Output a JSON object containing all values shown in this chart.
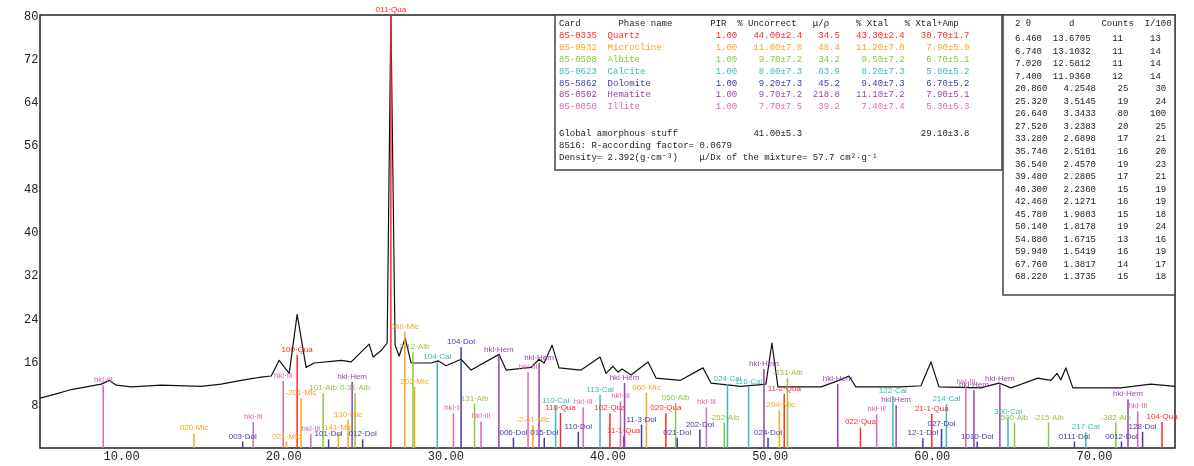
{
  "chart_data": {
    "type": "line",
    "xlim": [
      5,
      75
    ],
    "ylim": [
      0,
      80
    ],
    "xticks": [
      {
        "value": 10,
        "label": "10.00"
      },
      {
        "value": 20,
        "label": "20.00"
      },
      {
        "value": 30,
        "label": "30.00"
      },
      {
        "value": 40,
        "label": "40.00"
      },
      {
        "value": 50,
        "label": "50.00"
      },
      {
        "value": 60,
        "label": "60.00"
      },
      {
        "value": 70,
        "label": "70.00"
      }
    ],
    "yticks": [
      8,
      16,
      24,
      32,
      40,
      48,
      56,
      64,
      72,
      80
    ],
    "series": [
      {
        "color": "#111111",
        "x": [
          5.0,
          6.0,
          6.93,
          7.85,
          8.78,
          9.27,
          9.7,
          10.63,
          12.47,
          14.94,
          16.17,
          17.41,
          18.64,
          19.26,
          19.75,
          20.37,
          20.86,
          21.41,
          21.91,
          22.96,
          23.57,
          24.19,
          25.3,
          25.55,
          26.04,
          26.41,
          26.64,
          26.9,
          27.15,
          27.52,
          27.89,
          29.12,
          29.55,
          30.05,
          30.97,
          31.59,
          33.31,
          33.75,
          35.29,
          35.78,
          36.09,
          36.58,
          37.01,
          38.37,
          39.54,
          39.91,
          40.34,
          40.65,
          40.9,
          41.45,
          42.5,
          43.0,
          44.5,
          45.89,
          46.38,
          48.23,
          49.77,
          50.14,
          50.51,
          53.17,
          54.28,
          54.89,
          55.32,
          58.1,
          59.33,
          59.95,
          60.44,
          63.03,
          64.14,
          64.88,
          66.54,
          67.35,
          67.72,
          67.96,
          68.27,
          68.7,
          71.66,
          73.51,
          75.0
        ],
        "values": [
          9.2,
          10.0,
          10.8,
          11.3,
          11.8,
          12.5,
          11.6,
          11.3,
          11.6,
          11.4,
          11.8,
          12.5,
          13.1,
          13.3,
          16.2,
          13.8,
          24.7,
          14.9,
          15.7,
          16.0,
          16.2,
          15.9,
          19.2,
          16.8,
          18.0,
          19.4,
          80,
          19.0,
          17.0,
          20.3,
          15.7,
          15.7,
          16.1,
          15.2,
          16.4,
          14.4,
          17.3,
          14.4,
          14.9,
          16.4,
          15.7,
          19.0,
          14.8,
          14.4,
          16.8,
          13.8,
          15.1,
          14.0,
          14.6,
          13.5,
          15.9,
          12.9,
          12.5,
          14.8,
          12.0,
          11.4,
          11.8,
          19.4,
          11.3,
          11.3,
          12.5,
          13.3,
          11.3,
          11.3,
          11.5,
          15.9,
          11.3,
          11.1,
          12.0,
          11.1,
          12.9,
          12.5,
          13.8,
          12.6,
          14.8,
          11.1,
          11.1,
          11.8,
          11.4
        ]
      },
      {
        "type": "bar",
        "color": "#ff2a2a",
        "x": [
          20.86,
          26.64,
          37.1,
          40.15,
          41.0,
          43.6,
          50.9,
          55.6,
          60.0,
          74.2
        ],
        "values": [
          17.2,
          80,
          6.5,
          6.4,
          2.2,
          6.4,
          10.0,
          3.8,
          6.3,
          4.8
        ]
      },
      {
        "type": "bar",
        "color": "#ffa31a",
        "x": [
          14.5,
          20.2,
          21.1,
          23.4,
          24.0,
          27.5,
          28.1,
          35.4,
          42.4,
          50.6
        ],
        "values": [
          2.7,
          1.2,
          9.2,
          2.7,
          5.2,
          21.5,
          11.3,
          4.2,
          10.2,
          7.0
        ]
      },
      {
        "type": "bar",
        "color": "#8dc63f",
        "x": [
          22.46,
          24.43,
          28.0,
          31.8,
          44.2,
          47.2,
          51.1,
          65.1,
          67.2,
          71.35
        ],
        "values": [
          10.1,
          10.1,
          17.7,
          8.2,
          8.3,
          4.7,
          12.9,
          4.7,
          4.7,
          4.7
        ]
      },
      {
        "type": "bar",
        "color": "#3fb8b8",
        "x": [
          29.5,
          36.8,
          39.54,
          47.4,
          48.7,
          57.6,
          60.9,
          64.7,
          69.5
        ],
        "values": [
          15.9,
          7.8,
          9.8,
          11.8,
          11.3,
          9.6,
          8.1,
          5.7,
          2.9
        ]
      },
      {
        "type": "bar",
        "color": "#3c3caa",
        "x": [
          17.5,
          22.8,
          24.9,
          30.97,
          34.2,
          36.1,
          38.2,
          42.1,
          44.3,
          45.7,
          49.9,
          59.45,
          60.6,
          62.8,
          68.8,
          71.7,
          73.0
        ],
        "values": [
          1.2,
          1.6,
          1.6,
          18.6,
          1.9,
          1.9,
          3.0,
          4.3,
          1.9,
          3.4,
          1.9,
          1.8,
          3.5,
          1.2,
          1.2,
          1.2,
          3.0
        ]
      },
      {
        "type": "bar",
        "color": "#9a3fb0",
        "x": [
          24.25,
          33.3,
          35.78,
          41.05,
          49.65,
          54.2,
          57.8,
          62.6,
          64.2,
          72.1
        ],
        "values": [
          12.2,
          17.2,
          15.7,
          12.0,
          14.6,
          11.8,
          7.9,
          10.7,
          11.8,
          9.0
        ]
      },
      {
        "type": "bar",
        "color": "#e066b0",
        "x": [
          8.9,
          18.15,
          20.0,
          21.7,
          30.5,
          32.2,
          35.1,
          38.5,
          40.8,
          46.1,
          56.6,
          62.1,
          72.7
        ],
        "values": [
          11.6,
          4.8,
          12.4,
          2.6,
          6.4,
          4.9,
          14.0,
          7.5,
          8.6,
          7.5,
          6.2,
          11.3,
          6.8
        ]
      }
    ],
    "annotations": [
      "  Card       Phase name       PIR  % Uncorrect   μ/ρ     % Xtal   % Xtal+Amp",
      "85-0335  Quartz              1.00   44.00±2.4   34.5   43.30±2.4   30.70±1.7",
      "85-0932  Microcline          1.00   11.00±7.0   48.4   11.20±7.0    7.90±5.0",
      "85-0508  Albite              1.00    9.70±7.2   34.2    9.50±7.2    6.70±5.1",
      "85-0623  Calcite             1.00    8.80±7.3   63.9    8.20±7.3    5.80±5.2",
      "85-5862  Dolomite            1.00    9.20±7.3   45.2    9.40±7.3    6.70±5.2",
      "85-0502  Hematite            1.00    9.70±7.2  218.8   11.10±7.2    7.90±5.1",
      "85-0050  Illite              1.00    7.70±7.5   39.2    7.40±7.4    5.30±5.3",
      "Global amorphous stuff              41.00±5.3                      29.10±3.8",
      "8516: R-according factor= 0.0679",
      "Density= 2.392(g·cm⁻³)    μ/Dx of the mixture= 57.7 cm²·g⁻¹",
      "  2 θ       d     Counts  I/100",
      " 6.460  13.6705    11     13",
      " 6.740  13.1032    11     14",
      " 7.020  12.5812    11     14",
      " 7.400  11.9360    12     14",
      "20.860   4.2548    25     30",
      "25.320   3.5145    19     24",
      "26.640   3.3433    80    100",
      "27.520   3.2383    20     25",
      "33.280   2.6898    17     21",
      "35.740   2.5101    16     20",
      "36.540   2.4570    19     23",
      "39.480   2.2805    17     21",
      "40.300   2.2360    15     19",
      "42.460   2.1271    16     19",
      "45.780   1.9803    15     18",
      "50.140   1.8178    19     24",
      "54.880   1.6715    13     16",
      "59.940   1.5419    16     19",
      "67.760   1.3817    14     17",
      "68.220   1.3735    15     18",
      {
        "text": "100·Qua",
        "x": 20.86,
        "y": 17.2
      },
      {
        "text": "011·Qua",
        "x": 26.64,
        "y": 80
      },
      {
        "text": "110·Qua",
        "x": 37.1,
        "y": 6.5
      },
      {
        "text": "102·Qua",
        "x": 40.15,
        "y": 6.4
      },
      {
        "text": "11-1·Qua",
        "x": 41.0,
        "y": 2.2
      },
      {
        "text": "020·Qua",
        "x": 43.6,
        "y": 6.4
      },
      {
        "text": "11-2·Qua",
        "x": 50.9,
        "y": 10.0
      },
      {
        "text": "022·Qua",
        "x": 55.6,
        "y": 3.8
      },
      {
        "text": "21-1·Qua",
        "x": 60.0,
        "y": 6.3
      },
      {
        "text": "104·Qua",
        "x": 74.2,
        "y": 4.8
      },
      {
        "text": "020·Mic",
        "x": 14.5,
        "y": 2.7
      },
      {
        "text": "021·Mic",
        "x": 20.2,
        "y": 1.2
      },
      {
        "text": "-201·Mic",
        "x": 21.1,
        "y": 9.2
      },
      {
        "text": "141·Mic",
        "x": 23.4,
        "y": 2.7
      },
      {
        "text": "130·Mic",
        "x": 24.0,
        "y": 5.2
      },
      {
        "text": "040·Mic",
        "x": 27.5,
        "y": 21.5
      },
      {
        "text": "202·Mic",
        "x": 28.1,
        "y": 11.3
      },
      {
        "text": "-2-41·Mic",
        "x": 35.4,
        "y": 4.2
      },
      {
        "text": "060·Mic",
        "x": 42.4,
        "y": 10.2
      },
      {
        "text": "-204·Mic",
        "x": 50.6,
        "y": 7.0
      },
      {
        "text": "101·Alb",
        "x": 22.46,
        "y": 10.1
      },
      {
        "text": "0-31·Alb",
        "x": 24.43,
        "y": 10.1
      },
      {
        "text": "-2-12·Alb",
        "x": 28.0,
        "y": 17.7
      },
      {
        "text": "131·Alb",
        "x": 31.8,
        "y": 8.2
      },
      {
        "text": "050·Alb",
        "x": 44.2,
        "y": 8.3
      },
      {
        "text": "-252·Alb",
        "x": 47.2,
        "y": 4.7
      },
      {
        "text": "-431·Alb",
        "x": 51.1,
        "y": 12.9
      },
      {
        "text": "500·Alb",
        "x": 65.1,
        "y": 4.7
      },
      {
        "text": "-215·Alb",
        "x": 67.2,
        "y": 4.7
      },
      {
        "text": "-382·Alb",
        "x": 71.35,
        "y": 4.7
      },
      {
        "text": "104·Cal",
        "x": 29.5,
        "y": 15.9
      },
      {
        "text": "110·Cal",
        "x": 36.8,
        "y": 7.8
      },
      {
        "text": "113·Cal",
        "x": 39.54,
        "y": 9.8
      },
      {
        "text": "024·Cal",
        "x": 47.4,
        "y": 11.8
      },
      {
        "text": "116·Cal",
        "x": 48.7,
        "y": 11.3
      },
      {
        "text": "122·Cal",
        "x": 57.6,
        "y": 9.6
      },
      {
        "text": "214·Cal",
        "x": 60.9,
        "y": 8.1
      },
      {
        "text": "300·Cal",
        "x": 64.7,
        "y": 5.7
      },
      {
        "text": "217·Cal",
        "x": 69.5,
        "y": 2.9
      },
      {
        "text": "003·Dol",
        "x": 17.5,
        "y": 1.2
      },
      {
        "text": "101·Dol",
        "x": 22.8,
        "y": 1.6
      },
      {
        "text": "012·Dol",
        "x": 24.9,
        "y": 1.6
      },
      {
        "text": "104·Dol",
        "x": 30.97,
        "y": 18.6
      },
      {
        "text": "006·Dol",
        "x": 34.2,
        "y": 1.9
      },
      {
        "text": "015·Dol",
        "x": 36.1,
        "y": 1.9
      },
      {
        "text": "110·Dol",
        "x": 38.2,
        "y": 3.0
      },
      {
        "text": "11-3·Dol",
        "x": 42.1,
        "y": 4.3
      },
      {
        "text": "021·Dol",
        "x": 44.3,
        "y": 1.9
      },
      {
        "text": "202·Dol",
        "x": 45.7,
        "y": 3.4
      },
      {
        "text": "024·Dol",
        "x": 49.9,
        "y": 1.9
      },
      {
        "text": "12-1·Dol",
        "x": 59.45,
        "y": 1.8
      },
      {
        "text": "027·Dol",
        "x": 60.6,
        "y": 3.5
      },
      {
        "text": "1010·Dol",
        "x": 62.8,
        "y": 1.2
      },
      {
        "text": "0111·Dol",
        "x": 68.8,
        "y": 1.2
      },
      {
        "text": "0012·Dol",
        "x": 71.7,
        "y": 1.2
      },
      {
        "text": "128·Dol",
        "x": 73.0,
        "y": 3.0
      },
      {
        "text": "hkl·Hem",
        "x": 24.25,
        "y": 12.2
      },
      {
        "text": "hkl·Hem",
        "x": 33.3,
        "y": 17.2
      },
      {
        "text": "hkl·Hem",
        "x": 35.78,
        "y": 15.7
      },
      {
        "text": "hkl·Hem",
        "x": 41.05,
        "y": 12.0
      },
      {
        "text": "hkl·Hem",
        "x": 49.65,
        "y": 14.6
      },
      {
        "text": "hkl·Hem",
        "x": 54.2,
        "y": 11.8
      },
      {
        "text": "hkl·Hem",
        "x": 57.8,
        "y": 7.9
      },
      {
        "text": "hkl·Hem",
        "x": 62.6,
        "y": 10.7
      },
      {
        "text": "hkl·Hem",
        "x": 64.2,
        "y": 11.8
      },
      {
        "text": "hkl·Hem",
        "x": 72.1,
        "y": 9.0
      },
      {
        "text": "hkl·Ill",
        "x": 8.9,
        "y": 11.6
      },
      {
        "text": "hkl·Ill",
        "x": 18.15,
        "y": 4.8
      },
      {
        "text": "hkl·Ill",
        "x": 20.0,
        "y": 12.4
      },
      {
        "text": "hkl·Ill",
        "x": 21.7,
        "y": 2.6
      },
      {
        "text": "hkl·Ill",
        "x": 30.5,
        "y": 6.4
      },
      {
        "text": "hkl·Ill",
        "x": 32.2,
        "y": 4.9
      },
      {
        "text": "hkl·Ill",
        "x": 35.1,
        "y": 14.0
      },
      {
        "text": "hkl·Ill",
        "x": 38.5,
        "y": 7.5
      },
      {
        "text": "hkl·Ill",
        "x": 40.8,
        "y": 8.6
      },
      {
        "text": "hkl·Ill",
        "x": 46.1,
        "y": 7.5
      },
      {
        "text": "hkl·Ill",
        "x": 56.6,
        "y": 6.2
      },
      {
        "text": "hkl·Ill",
        "x": 62.1,
        "y": 11.3
      },
      {
        "text": "hkl·Ill",
        "x": 72.7,
        "y": 6.8
      }
    ]
  }
}
